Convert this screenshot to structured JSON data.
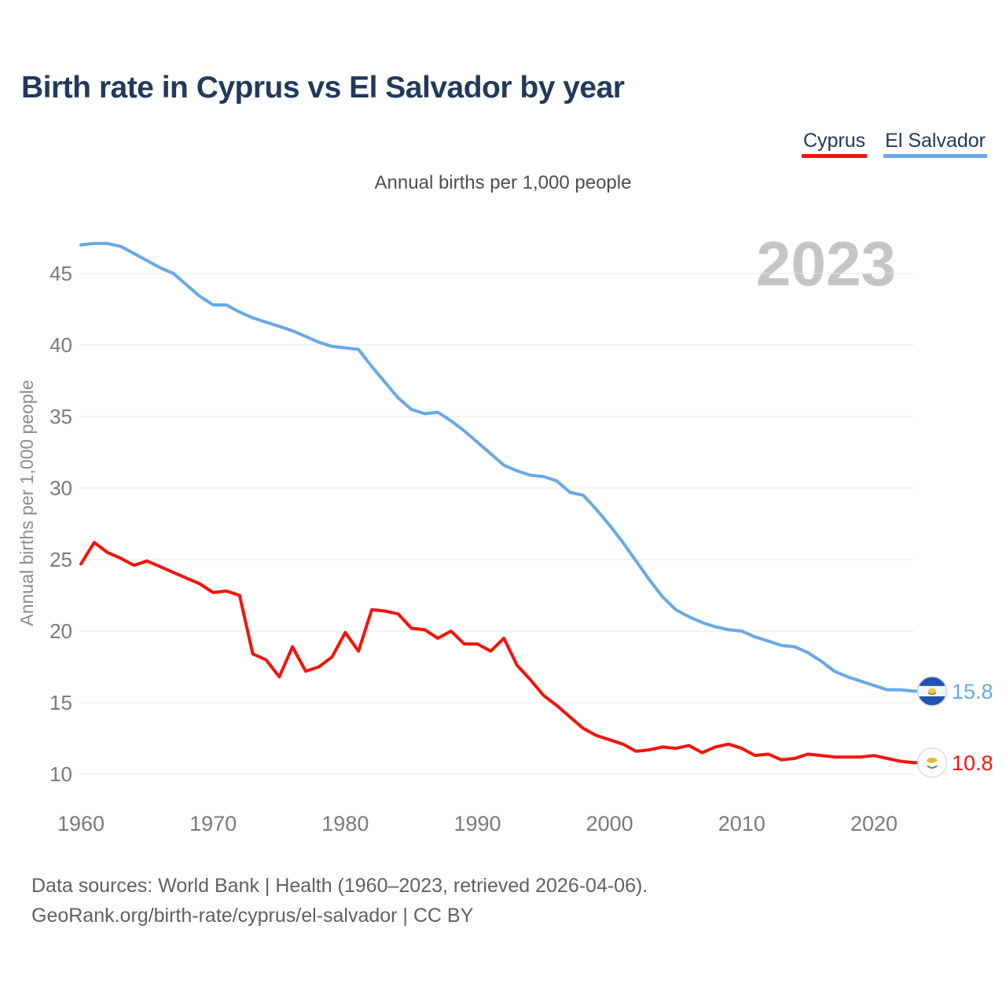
{
  "page": {
    "title": "Birth rate in Cyprus vs El Salvador by year",
    "subtitle": "Annual births per 1,000 people",
    "watermark": "2023",
    "footer_line1": "Data sources: World Bank | Health (1960–2023, retrieved 2026-04-06).",
    "footer_line2": "GeoRank.org/birth-rate/cyprus/el-salvador | CC BY"
  },
  "legend": {
    "items": [
      {
        "label": "Cyprus",
        "color": "#f5130a"
      },
      {
        "label": "El Salvador",
        "color": "#67a9e6"
      }
    ]
  },
  "colors": {
    "title_navy": "#22395c",
    "cyprus_red": "#f5130a",
    "el_salvador_blue": "#67a9e6",
    "gridline": "#e7e7e7",
    "tick_text": "#7a7a7a",
    "axis_label": "#8c8c8c",
    "watermark_gray": "#c5c5c5",
    "footer_gray": "#606060"
  },
  "chart_data": {
    "type": "line",
    "title": "Annual births per 1,000 people",
    "xlabel": "",
    "ylabel": "Annual births per 1,000 people",
    "watermark": "2023",
    "grid": true,
    "legend_position": "top-right",
    "xlim": [
      1960,
      2023
    ],
    "ylim": [
      10,
      47.5
    ],
    "x_ticks": [
      1960,
      1970,
      1980,
      1990,
      2000,
      2010,
      2020
    ],
    "y_ticks": [
      10,
      15,
      20,
      25,
      30,
      35,
      40,
      45
    ],
    "x": [
      1960,
      1961,
      1962,
      1963,
      1964,
      1965,
      1966,
      1967,
      1968,
      1969,
      1970,
      1971,
      1972,
      1973,
      1974,
      1975,
      1976,
      1977,
      1978,
      1979,
      1980,
      1981,
      1982,
      1983,
      1984,
      1985,
      1986,
      1987,
      1988,
      1989,
      1990,
      1991,
      1992,
      1993,
      1994,
      1995,
      1996,
      1997,
      1998,
      1999,
      2000,
      2001,
      2002,
      2003,
      2004,
      2005,
      2006,
      2007,
      2008,
      2009,
      2010,
      2011,
      2012,
      2013,
      2014,
      2015,
      2016,
      2017,
      2018,
      2019,
      2020,
      2021,
      2022,
      2023
    ],
    "series": [
      {
        "name": "El Salvador",
        "color": "#67a9e6",
        "end_label": "15.8",
        "flag": "el-salvador",
        "values": [
          47.0,
          47.1,
          47.1,
          46.9,
          46.4,
          45.9,
          45.4,
          45.0,
          44.2,
          43.4,
          42.8,
          42.8,
          42.3,
          41.9,
          41.6,
          41.3,
          41.0,
          40.6,
          40.2,
          39.9,
          39.8,
          39.7,
          38.5,
          37.4,
          36.3,
          35.5,
          35.2,
          35.3,
          34.7,
          34.0,
          33.2,
          32.4,
          31.6,
          31.2,
          30.9,
          30.8,
          30.5,
          29.7,
          29.5,
          28.5,
          27.4,
          26.2,
          24.9,
          23.6,
          22.4,
          21.5,
          21.0,
          20.6,
          20.3,
          20.1,
          20.0,
          19.6,
          19.3,
          19.0,
          18.9,
          18.5,
          17.9,
          17.2,
          16.8,
          16.5,
          16.2,
          15.9,
          15.9,
          15.8
        ]
      },
      {
        "name": "Cyprus",
        "color": "#f5130a",
        "end_label": "10.8",
        "flag": "cyprus",
        "values": [
          24.7,
          26.2,
          25.5,
          25.1,
          24.6,
          24.9,
          24.5,
          24.1,
          23.7,
          23.3,
          22.7,
          22.8,
          22.5,
          18.4,
          18.0,
          16.8,
          18.9,
          17.2,
          17.5,
          18.2,
          19.9,
          18.6,
          21.5,
          21.4,
          21.2,
          20.2,
          20.1,
          19.5,
          20.0,
          19.1,
          19.1,
          18.6,
          19.5,
          17.6,
          16.6,
          15.5,
          14.8,
          14.0,
          13.2,
          12.7,
          12.4,
          12.1,
          11.6,
          11.7,
          11.9,
          11.8,
          12.0,
          11.5,
          11.9,
          12.1,
          11.8,
          11.3,
          11.4,
          11.0,
          11.1,
          11.4,
          11.3,
          11.2,
          11.2,
          11.2,
          11.3,
          11.1,
          10.9,
          10.8
        ]
      }
    ]
  }
}
